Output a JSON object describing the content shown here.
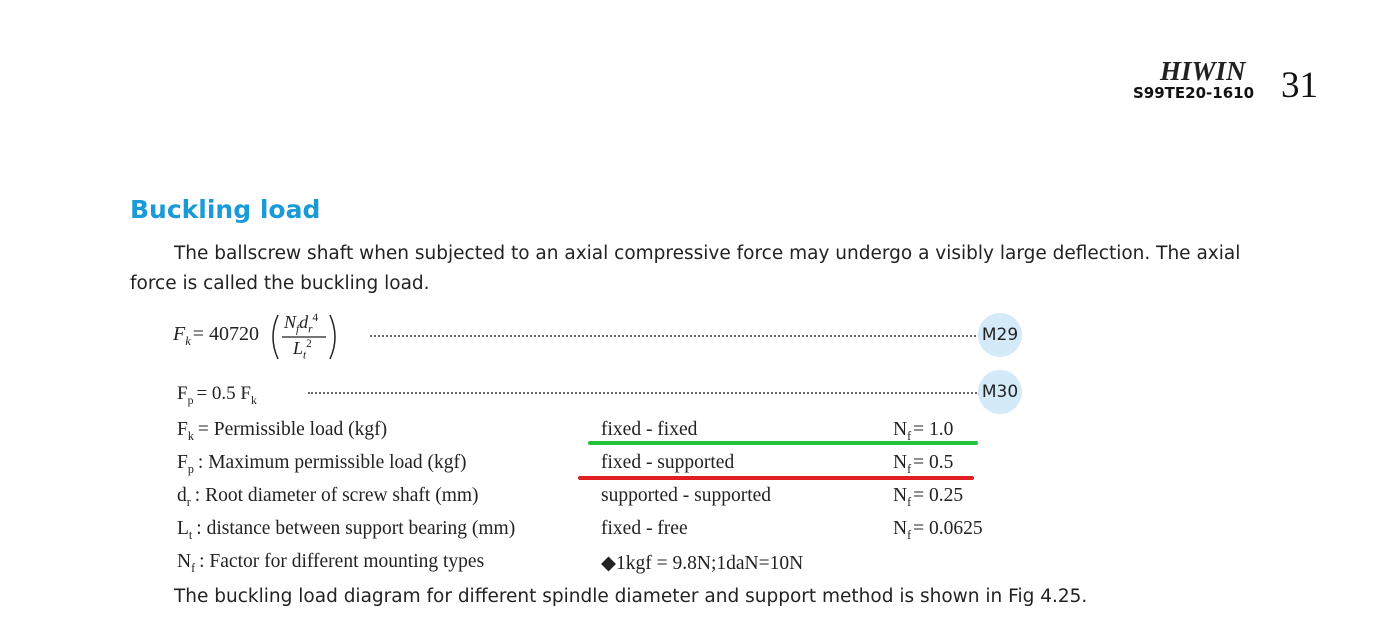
{
  "header": {
    "brand": "HIWIN",
    "code": "S99TE20-1610",
    "page": "31"
  },
  "section": {
    "title": "Buckling load",
    "paragraph": "The ballscrew shaft when subjected to an axial compressive force may undergo a visibly large deflection. The axial force is called the buckling load."
  },
  "formula1": {
    "symbol": "F",
    "sub": "k",
    "coefficient": "= 40720",
    "numerator": {
      "n": "N",
      "n_sub": "f",
      "d": "d",
      "d_sub": "r",
      "d_exp": "4"
    },
    "denominator": {
      "l": "L",
      "l_sub": "t",
      "l_exp": "2"
    },
    "tag": "M29"
  },
  "formula2": {
    "symbol": "F",
    "sub": "p",
    "rhs": "= 0.5 F",
    "rhs_sub": "k",
    "tag": "M30"
  },
  "rows": [
    {
      "symbol": "F",
      "sub": "k",
      "text": "= Permissible load (kgf)",
      "mounting": "fixed - fixed",
      "nf_symbol": "N",
      "nf_sub": "f",
      "nf_value": "= 1.0"
    },
    {
      "symbol": "F",
      "sub": "p",
      "text": ": Maximum permissible load (kgf)",
      "mounting": "fixed - supported",
      "nf_symbol": "N",
      "nf_sub": "f",
      "nf_value": "= 0.5"
    },
    {
      "symbol": "d",
      "sub": "r",
      "text": ": Root diameter of screw shaft (mm)",
      "mounting": "supported - supported",
      "nf_symbol": "N",
      "nf_sub": "f",
      "nf_value": "= 0.25"
    },
    {
      "symbol": "L",
      "sub": "t",
      "text": ": distance between support bearing (mm)",
      "mounting": "fixed - free",
      "nf_symbol": "N",
      "nf_sub": "f",
      "nf_value": "= 0.0625"
    },
    {
      "symbol": "N",
      "sub": "f",
      "text": ": Factor for different mounting types",
      "mounting": "◆1kgf = 9.8N;1daN=10N"
    }
  ],
  "closing": "The buckling load diagram for different spindle diameter and support method is shown in Fig 4.25."
}
